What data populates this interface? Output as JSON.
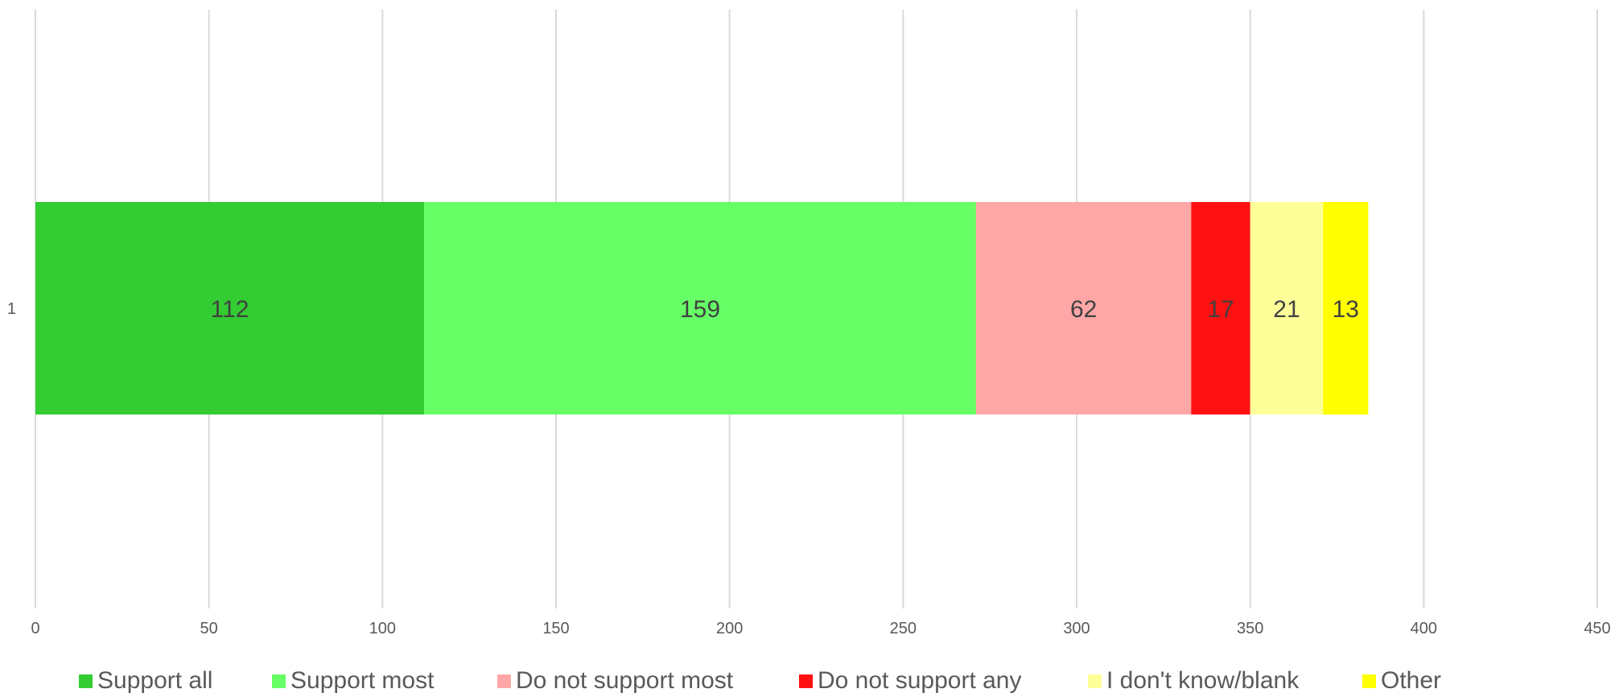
{
  "chart_data": {
    "type": "bar",
    "orientation": "horizontal",
    "stacked": true,
    "categories": [
      "1"
    ],
    "series": [
      {
        "name": "Support all",
        "values": [
          112
        ],
        "color": "#33CC33"
      },
      {
        "name": "Support most",
        "values": [
          159
        ],
        "color": "#66FF66"
      },
      {
        "name": "Do not support most",
        "values": [
          62
        ],
        "color": "#FFA7A7"
      },
      {
        "name": "Do not support any",
        "values": [
          17
        ],
        "color": "#FF1111"
      },
      {
        "name": "I don't know/blank",
        "values": [
          21
        ],
        "color": "#FFFF99"
      },
      {
        "name": "Other",
        "values": [
          13
        ],
        "color": "#FFFF00"
      }
    ],
    "xlim": [
      0,
      450
    ],
    "xticks": [
      0,
      50,
      100,
      150,
      200,
      250,
      300,
      350,
      400,
      450
    ],
    "grid": true,
    "data_labels": true,
    "legend_position": "bottom",
    "title": "",
    "xlabel": "",
    "ylabel": ""
  }
}
